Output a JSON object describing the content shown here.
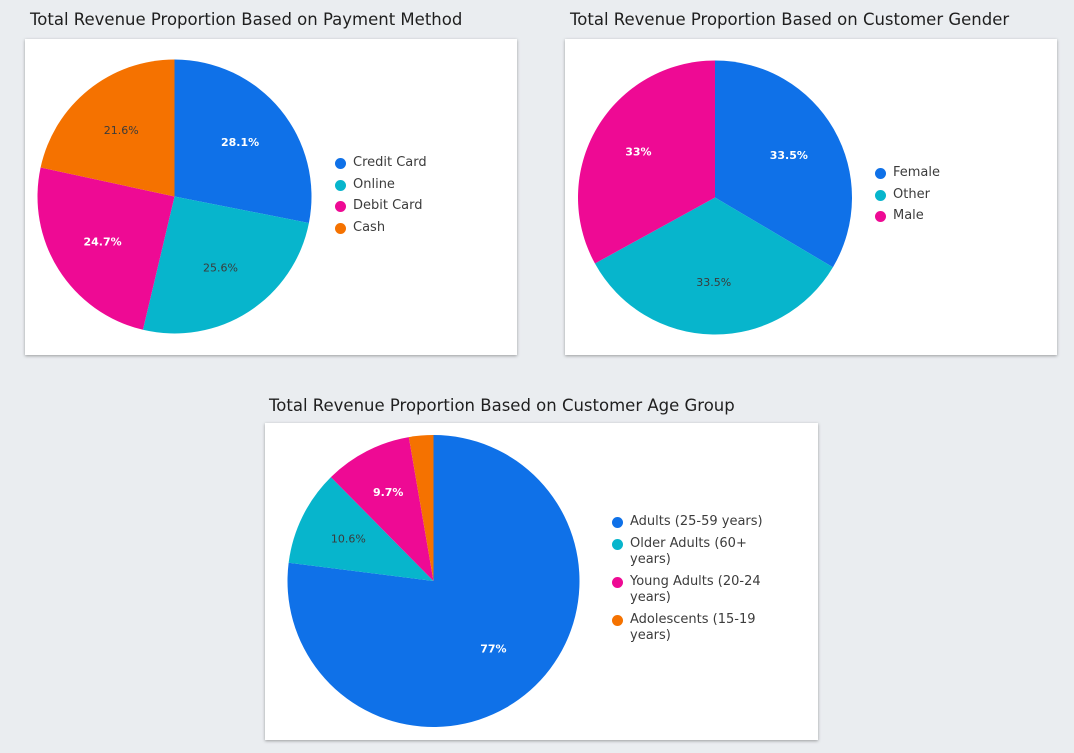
{
  "colors": {
    "blue": "#0f71e8",
    "teal": "#07b5cc",
    "magenta": "#ee0a94",
    "orange": "#f57200"
  },
  "chart_data": [
    {
      "type": "pie",
      "title": "Total Revenue Proportion Based on Payment Method",
      "categories": [
        "Credit Card",
        "Online",
        "Debit Card",
        "Cash"
      ],
      "values": [
        28.1,
        25.6,
        24.7,
        21.6
      ],
      "labels": [
        "28.1%",
        "25.6%",
        "24.7%",
        "21.6%"
      ],
      "legend": "right"
    },
    {
      "type": "pie",
      "title": "Total Revenue Proportion Based on Customer Gender",
      "categories": [
        "Female",
        "Other",
        "Male"
      ],
      "values": [
        33.5,
        33.5,
        33
      ],
      "labels": [
        "33.5%",
        "33.5%",
        "33%"
      ],
      "legend": "right"
    },
    {
      "type": "pie",
      "title": "Total Revenue Proportion Based on Customer Age Group",
      "categories": [
        "Adults (25-59 years)",
        "Older Adults (60+ years)",
        "Young Adults (20-24 years)",
        "Adolescents (15-19 years)"
      ],
      "values": [
        77,
        10.6,
        9.7,
        2.7
      ],
      "labels": [
        "77%",
        "10.6%",
        "9.7%",
        ""
      ],
      "legend": "right"
    }
  ]
}
